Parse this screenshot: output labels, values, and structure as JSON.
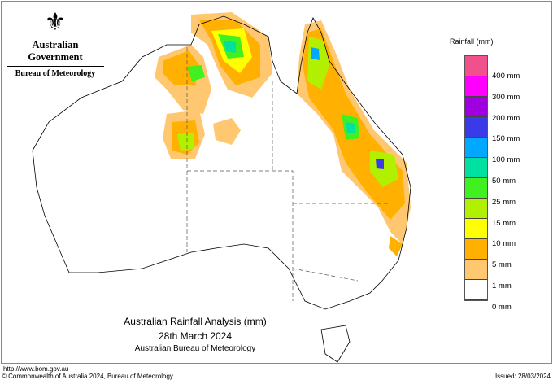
{
  "header": {
    "government": "Australian Government",
    "bureau": "Bureau of Meteorology",
    "logo_icon": "coat-of-arms-icon"
  },
  "title": {
    "line1": "Australian Rainfall Analysis (mm)",
    "line2": "28th March 2024",
    "line3": "Australian Bureau of Meteorology"
  },
  "legend": {
    "title": "Rainfall (mm)",
    "colors": [
      "#f0508c",
      "#ff00ff",
      "#a000e0",
      "#3a3ae8",
      "#00a8ff",
      "#00e0a0",
      "#40f020",
      "#b0f000",
      "#ffff00",
      "#ffb000",
      "#ffc870",
      "#ffffff"
    ],
    "labels": [
      "400 mm",
      "300 mm",
      "200 mm",
      "150 mm",
      "100 mm",
      "50 mm",
      "25 mm",
      "15 mm",
      "10 mm",
      "5 mm",
      "1 mm",
      "0 mm"
    ]
  },
  "footer": {
    "url": "http://www.bom.gov.au",
    "copyright": "© Commonwealth of Australia 2024, Bureau of Meteorology",
    "issued": "Issued: 28/03/2024"
  }
}
